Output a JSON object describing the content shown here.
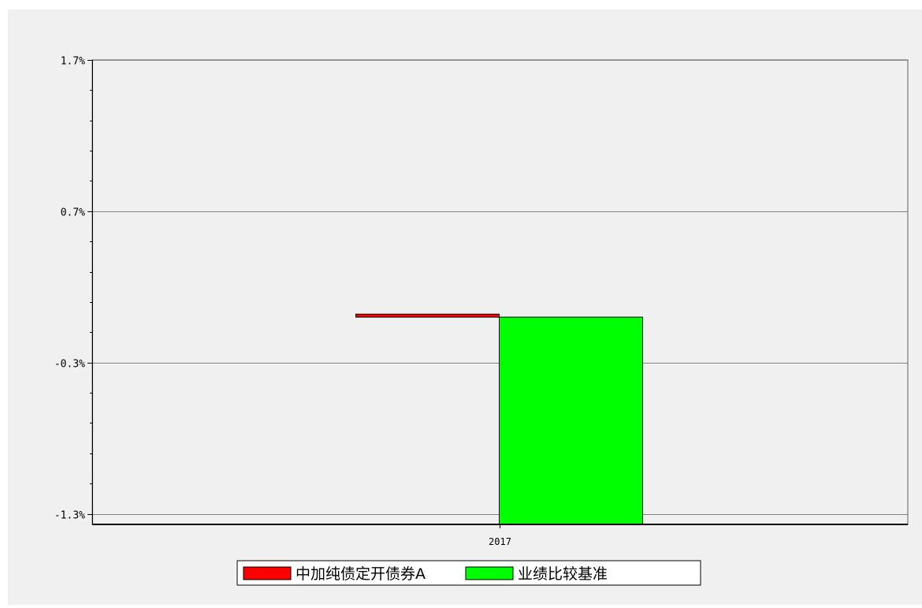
{
  "chart_data": {
    "type": "bar",
    "categories": [
      "2017"
    ],
    "series": [
      {
        "name": "中加纯债定开债券A",
        "values": [
          0.02
        ],
        "color": "#ff0000"
      },
      {
        "name": "业绩比较基准",
        "values": [
          -1.37
        ],
        "color": "#00ff00"
      }
    ],
    "ylim": [
      -1.37,
      1.7
    ],
    "yticks": [
      "1.7%",
      "0.7%",
      "-0.3%",
      "-1.3%"
    ],
    "ytick_values": [
      1.7,
      0.7,
      -0.3,
      -1.3
    ],
    "grid": true,
    "legend_position": "bottom-center",
    "colors": {
      "plot_background": "#f0f0f0",
      "page_background": "#ffffff",
      "grid": "#808080"
    }
  }
}
